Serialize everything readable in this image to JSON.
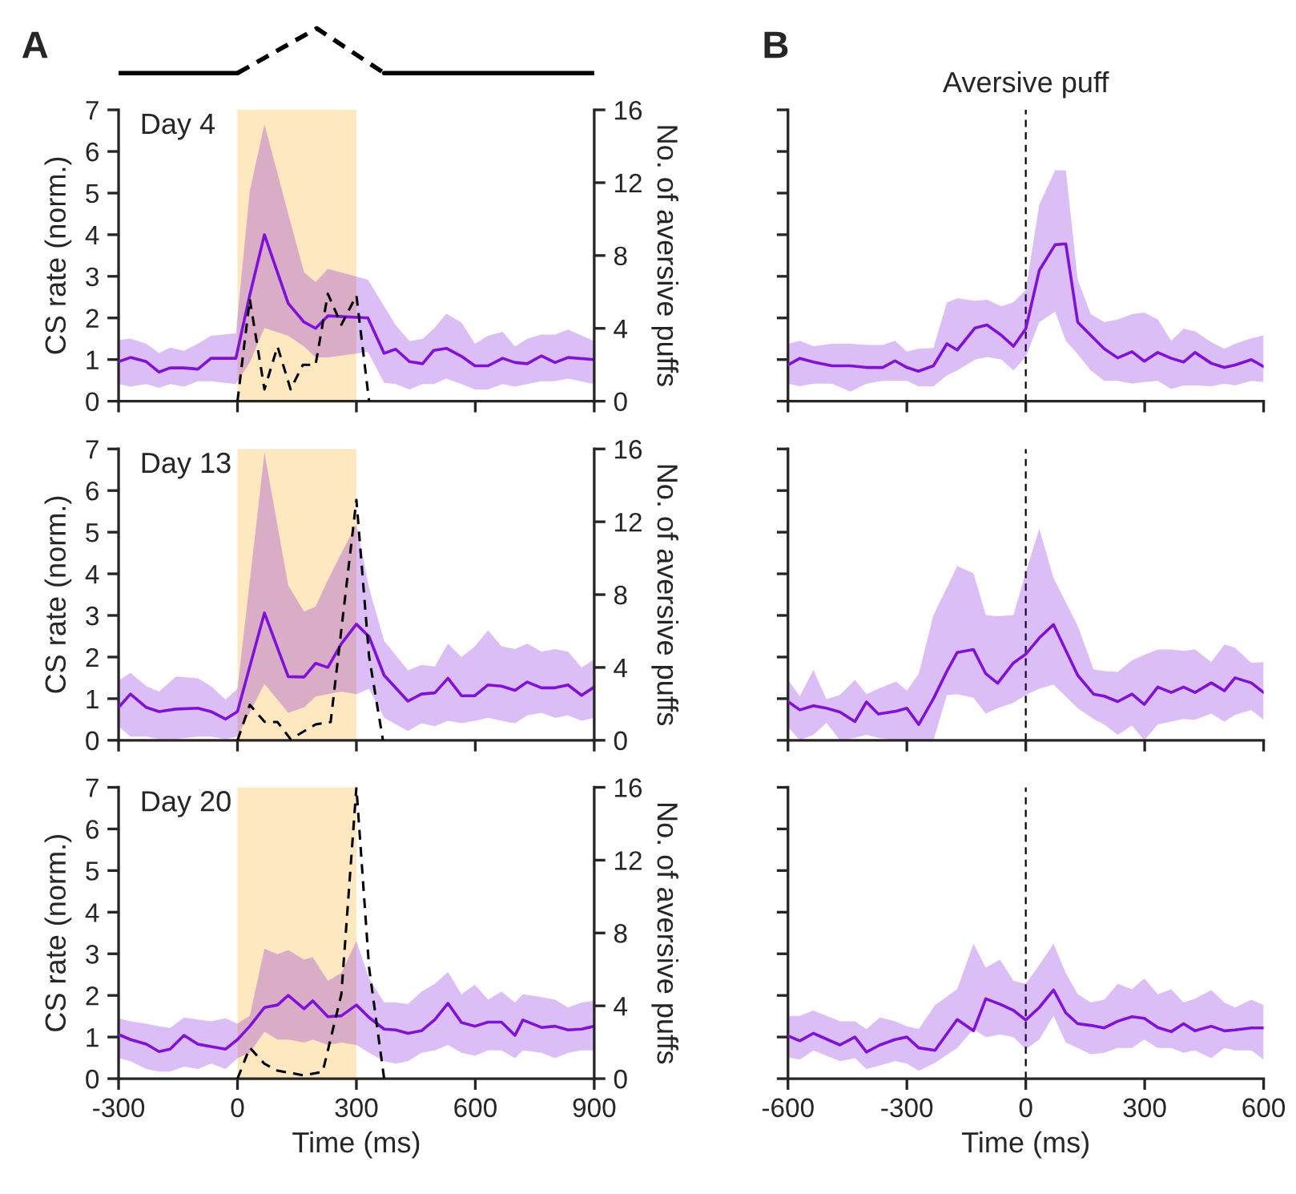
{
  "chart_data": [
    {
      "type": "line",
      "title": "A",
      "ylabel": "CS rate (norm.)",
      "y2label": "No. of aversive puffs",
      "annotations": [
        "Day 4"
      ],
      "xlim": [
        -300,
        900
      ],
      "xticks": [
        -300,
        0,
        300,
        600,
        900
      ],
      "ylim": [
        0,
        7
      ],
      "yticks": [
        0,
        1,
        2,
        3,
        4,
        5,
        6,
        7
      ],
      "y2lim": [
        0,
        16
      ],
      "y2ticks": [
        0,
        4,
        8,
        12,
        16
      ],
      "tick_labels": "y",
      "bands": [
        {
          "axis": "x",
          "from": 0,
          "to": 300,
          "color": "#fde8bf"
        }
      ],
      "series": [
        {
          "color": "#7f10dd",
          "x": [
            -300,
            -270,
            -230,
            -198,
            -170,
            -135,
            -100,
            -67,
            -4,
            31,
            68,
            128,
            168,
            197,
            228,
            329,
            370,
            399,
            434,
            467,
            495,
            527,
            565,
            599,
            632,
            669,
            700,
            731,
            767,
            801,
            834,
            900
          ],
          "values": [
            0.95,
            1.05,
            0.95,
            0.7,
            0.8,
            0.8,
            0.77,
            1.03,
            1.03,
            2.55,
            4.0,
            2.35,
            1.9,
            1.75,
            2.05,
            2.0,
            1.15,
            1.25,
            0.95,
            0.9,
            1.22,
            1.27,
            1.08,
            0.85,
            0.85,
            1.03,
            0.93,
            0.9,
            1.09,
            0.93,
            1.05,
            1.0
          ],
          "upper": [
            1.47,
            1.5,
            1.38,
            1.16,
            1.29,
            1.21,
            1.38,
            1.57,
            1.63,
            5.05,
            6.65,
            4.5,
            3.1,
            2.86,
            3.18,
            2.92,
            2.28,
            1.83,
            1.44,
            1.5,
            1.74,
            2.1,
            1.89,
            1.38,
            1.57,
            1.67,
            1.31,
            1.5,
            1.6,
            1.6,
            1.72,
            1.44
          ],
          "lower": [
            0.41,
            0.35,
            0.41,
            0.32,
            0.41,
            0.35,
            0.48,
            0.48,
            0.41,
            0.93,
            1.76,
            1.57,
            1.31,
            1.05,
            1.05,
            1.18,
            0.44,
            0.41,
            0.28,
            0.41,
            0.41,
            0.54,
            0.41,
            0.28,
            0.28,
            0.41,
            0.35,
            0.41,
            0.48,
            0.48,
            0.54,
            0.41
          ]
        },
        {
          "color": "#000000",
          "axis": "y2",
          "line_style": "dashed",
          "x": [
            0,
            31,
            68,
            101,
            134,
            165,
            197,
            228,
            262,
            300,
            332
          ],
          "values": [
            0,
            5.6,
            0.65,
            3.0,
            0.65,
            2.0,
            2.0,
            5.9,
            4.2,
            5.8,
            0
          ]
        }
      ]
    },
    {
      "type": "line",
      "ylabel": "CS rate (norm.)",
      "y2label": "No. of aversive puffs",
      "annotations": [
        "Day 13"
      ],
      "xlim": [
        -300,
        900
      ],
      "xticks": [
        -300,
        0,
        300,
        600,
        900
      ],
      "ylim": [
        0,
        7
      ],
      "yticks": [
        0,
        1,
        2,
        3,
        4,
        5,
        6,
        7
      ],
      "y2lim": [
        0,
        16
      ],
      "y2ticks": [
        0,
        4,
        8,
        12,
        16
      ],
      "tick_labels": "y",
      "bands": [
        {
          "axis": "x",
          "from": 0,
          "to": 300,
          "color": "#fde8bf"
        }
      ],
      "series": [
        {
          "color": "#7f10dd",
          "x": [
            -300,
            -270,
            -230,
            -198,
            -155,
            -100,
            -67,
            -30,
            0,
            68,
            128,
            168,
            197,
            228,
            262,
            300,
            332,
            370,
            430,
            464,
            498,
            531,
            565,
            599,
            632,
            666,
            700,
            731,
            767,
            801,
            834,
            868,
            900
          ],
          "values": [
            0.79,
            1.11,
            0.79,
            0.69,
            0.75,
            0.77,
            0.69,
            0.51,
            0.69,
            3.06,
            1.53,
            1.52,
            1.85,
            1.75,
            2.32,
            2.79,
            2.49,
            1.56,
            0.94,
            1.11,
            1.14,
            1.49,
            1.07,
            1.07,
            1.33,
            1.3,
            1.2,
            1.4,
            1.26,
            1.26,
            1.33,
            1.08,
            1.28
          ],
          "upper": [
            1.43,
            1.62,
            1.3,
            1.17,
            1.53,
            1.49,
            1.3,
            0.98,
            1.24,
            6.91,
            3.72,
            3.09,
            3.21,
            3.85,
            4.49,
            5.19,
            3.66,
            2.39,
            1.68,
            1.81,
            1.77,
            2.32,
            2.0,
            2.26,
            2.64,
            2.26,
            2.19,
            2.32,
            2.13,
            2.19,
            2.13,
            1.75,
            1.94
          ],
          "lower": [
            0.34,
            0.09,
            0.09,
            0.03,
            0.03,
            0.09,
            0.09,
            0.03,
            0.09,
            1.36,
            0.66,
            0.79,
            1.05,
            1.11,
            1.17,
            1.11,
            1.24,
            0.54,
            0.22,
            0.41,
            0.34,
            0.47,
            0.41,
            0.47,
            0.54,
            0.47,
            0.41,
            0.6,
            0.66,
            0.54,
            0.6,
            0.47,
            0.54
          ]
        },
        {
          "color": "#000000",
          "axis": "y2",
          "line_style": "dashed",
          "x": [
            0,
            31,
            68,
            101,
            134,
            168,
            197,
            235,
            300,
            332,
            367
          ],
          "values": [
            0,
            1.95,
            1.02,
            1.0,
            0.06,
            0.5,
            0.87,
            1.0,
            13.2,
            4.6,
            0
          ]
        }
      ]
    },
    {
      "type": "line",
      "ylabel": "CS rate (norm.)",
      "y2label": "No. of aversive puffs",
      "xlabel": "Time (ms)",
      "annotations": [
        "Day 20"
      ],
      "xlim": [
        -300,
        900
      ],
      "xticks": [
        -300,
        0,
        300,
        600,
        900
      ],
      "ylim": [
        0,
        7
      ],
      "yticks": [
        0,
        1,
        2,
        3,
        4,
        5,
        6,
        7
      ],
      "y2lim": [
        0,
        16
      ],
      "y2ticks": [
        0,
        4,
        8,
        12,
        16
      ],
      "bands": [
        {
          "axis": "x",
          "from": 0,
          "to": 300,
          "color": "#fde8bf"
        }
      ],
      "series": [
        {
          "color": "#7f10dd",
          "x": [
            -300,
            -270,
            -230,
            -198,
            -170,
            -135,
            -100,
            -67,
            -30,
            0,
            31,
            68,
            101,
            128,
            168,
            190,
            228,
            262,
            300,
            332,
            370,
            399,
            430,
            464,
            498,
            531,
            565,
            599,
            632,
            666,
            700,
            720,
            767,
            801,
            834,
            868,
            900
          ],
          "values": [
            1.06,
            0.94,
            0.83,
            0.65,
            0.71,
            1.04,
            0.83,
            0.77,
            0.71,
            0.94,
            1.26,
            1.71,
            1.77,
            2.0,
            1.68,
            1.87,
            1.49,
            1.51,
            1.77,
            1.47,
            1.19,
            1.17,
            1.09,
            1.15,
            1.42,
            1.81,
            1.35,
            1.26,
            1.36,
            1.36,
            1.04,
            1.41,
            1.23,
            1.26,
            1.17,
            1.19,
            1.26
          ],
          "upper": [
            1.45,
            1.38,
            1.32,
            1.26,
            1.22,
            1.47,
            1.42,
            1.38,
            1.45,
            1.32,
            1.51,
            3.12,
            2.99,
            3.09,
            2.86,
            2.92,
            2.35,
            2.54,
            3.31,
            2.41,
            1.83,
            1.83,
            1.79,
            2.09,
            2.28,
            2.56,
            2.03,
            2.26,
            1.9,
            2.09,
            1.83,
            2.03,
            1.96,
            1.9,
            1.71,
            1.83,
            1.87
          ],
          "lower": [
            0.49,
            0.42,
            0.23,
            0.17,
            0.17,
            0.29,
            0.23,
            0.36,
            0.23,
            0.49,
            0.62,
            1.13,
            0.94,
            0.94,
            0.87,
            0.94,
            0.81,
            0.87,
            0.81,
            0.62,
            0.42,
            0.36,
            0.42,
            0.62,
            0.68,
            0.81,
            0.62,
            0.55,
            0.68,
            0.68,
            0.49,
            0.68,
            0.62,
            0.49,
            0.62,
            0.68,
            0.68
          ]
        },
        {
          "color": "#000000",
          "axis": "y2",
          "line_style": "dashed",
          "x": [
            0,
            31,
            68,
            101,
            168,
            215,
            262,
            300,
            332,
            370
          ],
          "values": [
            0,
            1.7,
            0.82,
            0.44,
            0.18,
            0.38,
            4.63,
            16.0,
            6.1,
            0
          ]
        }
      ]
    },
    {
      "type": "line",
      "title": "B",
      "xlim": [
        -600,
        600
      ],
      "xticks": [
        -600,
        -300,
        0,
        300,
        600
      ],
      "ylim": [
        0,
        7
      ],
      "yticks": [
        0,
        1,
        2,
        3,
        4,
        5,
        6,
        7
      ],
      "tick_labels": false,
      "ref_lines": [
        {
          "axis": "x",
          "value": 0,
          "label": "Aversive puff",
          "color": "#000000",
          "line_style": "dashed"
        }
      ],
      "series": [
        {
          "color": "#7f10dd",
          "x": [
            -600,
            -570,
            -536,
            -489,
            -442,
            -402,
            -361,
            -330,
            -300,
            -271,
            -233,
            -199,
            -173,
            -128,
            -98,
            -61,
            -31,
            0,
            34,
            74,
            101,
            131,
            164,
            198,
            232,
            268,
            299,
            333,
            367,
            398,
            427,
            468,
            501,
            528,
            569,
            600
          ],
          "values": [
            0.87,
            1.03,
            0.94,
            0.85,
            0.85,
            0.81,
            0.81,
            0.97,
            0.81,
            0.72,
            0.85,
            1.38,
            1.23,
            1.76,
            1.83,
            1.58,
            1.32,
            1.74,
            3.14,
            3.76,
            3.78,
            1.9,
            1.58,
            1.26,
            1.04,
            1.19,
            0.96,
            1.17,
            1.03,
            0.94,
            1.17,
            0.91,
            0.81,
            0.87,
            1.0,
            0.83
          ],
          "upper": [
            1.38,
            1.45,
            1.32,
            1.38,
            1.38,
            1.35,
            1.35,
            1.45,
            1.19,
            1.26,
            1.28,
            2.37,
            2.47,
            2.41,
            2.44,
            2.28,
            2.38,
            2.67,
            4.72,
            5.55,
            5.55,
            2.92,
            2.09,
            1.9,
            1.96,
            2.09,
            2.13,
            1.96,
            1.45,
            1.74,
            1.68,
            1.42,
            1.26,
            1.38,
            1.51,
            1.58
          ],
          "lower": [
            0.42,
            0.36,
            0.42,
            0.42,
            0.23,
            0.42,
            0.49,
            0.49,
            0.49,
            0.36,
            0.36,
            0.62,
            0.74,
            1.0,
            1.06,
            1.0,
            0.74,
            1.06,
            1.9,
            2.15,
            1.45,
            1.13,
            0.74,
            0.49,
            0.49,
            0.42,
            0.46,
            0.49,
            0.29,
            0.38,
            0.38,
            0.36,
            0.42,
            0.38,
            0.49,
            0.46
          ]
        }
      ]
    },
    {
      "type": "line",
      "xlim": [
        -600,
        600
      ],
      "xticks": [
        -600,
        -300,
        0,
        300,
        600
      ],
      "ylim": [
        0,
        7
      ],
      "yticks": [
        0,
        1,
        2,
        3,
        4,
        5,
        6,
        7
      ],
      "tick_labels": false,
      "ref_lines": [
        {
          "axis": "x",
          "value": 0,
          "color": "#000000",
          "line_style": "dashed"
        }
      ],
      "series": [
        {
          "color": "#7f10dd",
          "x": [
            -600,
            -570,
            -536,
            -503,
            -469,
            -431,
            -402,
            -372,
            -327,
            -300,
            -270,
            -233,
            -199,
            -173,
            -132,
            -101,
            -71,
            -31,
            0,
            34,
            70,
            131,
            171,
            198,
            232,
            268,
            299,
            333,
            367,
            398,
            427,
            468,
            501,
            528,
            569,
            600
          ],
          "values": [
            0.93,
            0.73,
            0.83,
            0.77,
            0.68,
            0.45,
            0.92,
            0.63,
            0.7,
            0.77,
            0.38,
            1.0,
            1.66,
            2.11,
            2.18,
            1.6,
            1.37,
            1.86,
            2.07,
            2.46,
            2.78,
            1.56,
            1.11,
            1.06,
            0.93,
            1.11,
            0.86,
            1.28,
            1.15,
            1.28,
            1.15,
            1.38,
            1.19,
            1.5,
            1.38,
            1.15
          ],
          "upper": [
            1.45,
            1.06,
            1.69,
            0.99,
            1.09,
            1.45,
            1.11,
            1.24,
            1.41,
            1.19,
            1.6,
            3.01,
            3.67,
            4.19,
            4.01,
            3.01,
            2.98,
            3.01,
            4.03,
            5.08,
            3.9,
            2.75,
            1.7,
            1.66,
            1.64,
            1.92,
            2.05,
            2.18,
            2.18,
            2.15,
            2.18,
            1.88,
            2.3,
            2.22,
            1.86,
            1.88
          ],
          "lower": [
            0.32,
            0,
            0.13,
            0.42,
            0,
            0.06,
            0.13,
            0.06,
            0,
            0,
            0,
            0,
            1.09,
            1.11,
            1.02,
            0.64,
            0.77,
            0.9,
            1.09,
            1.24,
            1.34,
            0.77,
            0.51,
            0.38,
            0.13,
            0.35,
            0,
            0.38,
            0.45,
            0.51,
            0.49,
            0.64,
            0.45,
            0.61,
            0.73,
            0.49
          ]
        }
      ]
    },
    {
      "type": "line",
      "xlabel": "Time (ms)",
      "xlim": [
        -600,
        600
      ],
      "xticks": [
        -600,
        -300,
        0,
        300,
        600
      ],
      "ylim": [
        0,
        7
      ],
      "yticks": [
        0,
        1,
        2,
        3,
        4,
        5,
        6,
        7
      ],
      "tick_labels": "x",
      "ref_lines": [
        {
          "axis": "x",
          "value": 0,
          "color": "#000000",
          "line_style": "dashed"
        }
      ],
      "series": [
        {
          "color": "#7f10dd",
          "x": [
            -600,
            -570,
            -536,
            -469,
            -431,
            -402,
            -368,
            -330,
            -300,
            -270,
            -229,
            -173,
            -132,
            -101,
            -65,
            -31,
            0,
            34,
            70,
            101,
            131,
            164,
            198,
            232,
            268,
            299,
            333,
            367,
            398,
            427,
            468,
            501,
            528,
            569,
            600
          ],
          "values": [
            1.03,
            0.91,
            1.09,
            0.81,
            1.0,
            0.64,
            0.81,
            0.94,
            1.0,
            0.74,
            0.68,
            1.42,
            1.15,
            1.92,
            1.79,
            1.64,
            1.41,
            1.71,
            2.13,
            1.58,
            1.32,
            1.28,
            1.22,
            1.38,
            1.49,
            1.45,
            1.23,
            1.13,
            1.32,
            1.15,
            1.26,
            1.15,
            1.17,
            1.22,
            1.22
          ],
          "upper": [
            1.51,
            1.51,
            1.64,
            1.38,
            1.38,
            1.19,
            1.47,
            1.38,
            1.26,
            1.19,
            1.77,
            2.15,
            3.24,
            2.67,
            2.86,
            2.35,
            2.28,
            2.73,
            3.24,
            2.54,
            2.03,
            1.83,
            1.9,
            2.28,
            2.15,
            2.41,
            2.03,
            2.15,
            1.83,
            1.92,
            2.13,
            1.83,
            1.71,
            1.9,
            1.77
          ],
          "lower": [
            0.51,
            0.46,
            0.68,
            0.42,
            0.49,
            0.23,
            0.32,
            0.42,
            0.36,
            0.19,
            0.38,
            0.74,
            1.19,
            1.0,
            1.06,
            1.0,
            0.71,
            0.94,
            1.51,
            0.87,
            0.74,
            0.59,
            0.62,
            0.74,
            0.74,
            0.94,
            0.74,
            0.74,
            0.62,
            0.68,
            0.49,
            0.74,
            0.68,
            0.68,
            0.46
          ]
        }
      ]
    }
  ]
}
